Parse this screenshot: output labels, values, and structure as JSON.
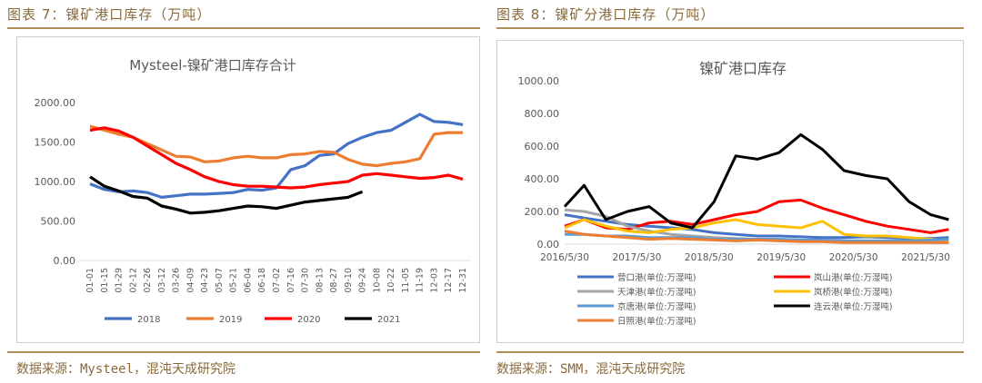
{
  "left": {
    "figure_title": "图表 7：镍矿港口库存（万吨）",
    "source": "数据来源：Mysteel，混沌天成研究院"
  },
  "right": {
    "figure_title": "图表 8：镍矿分港口库存（万吨）",
    "source": "数据来源：SMM，混沌天成研究院"
  },
  "chart_data": [
    {
      "type": "line",
      "title": "Mysteel-镍矿港口库存合计",
      "ylim": [
        0,
        2000
      ],
      "yticks": [
        "0.00",
        "500.00",
        "1000.00",
        "1500.00",
        "2000.00"
      ],
      "categories": [
        "01-01",
        "01-15",
        "01-29",
        "02-12",
        "02-26",
        "03-12",
        "03-26",
        "04-09",
        "04-23",
        "05-07",
        "05-21",
        "06-04",
        "06-18",
        "07-02",
        "07-16",
        "07-30",
        "08-13",
        "08-27",
        "09-10",
        "09-24",
        "10-08",
        "10-22",
        "11-05",
        "11-19",
        "12-03",
        "12-17",
        "12-31"
      ],
      "series": [
        {
          "name": "2018",
          "color": "#4472c4",
          "values": [
            970,
            900,
            870,
            880,
            860,
            800,
            820,
            840,
            840,
            850,
            860,
            900,
            890,
            920,
            1150,
            1200,
            1330,
            1350,
            1480,
            1560,
            1620,
            1650,
            1750,
            1850,
            1760,
            1750,
            1720
          ]
        },
        {
          "name": "2019",
          "color": "#ed7d31",
          "values": [
            1700,
            1650,
            1600,
            1560,
            1480,
            1400,
            1320,
            1310,
            1250,
            1260,
            1300,
            1320,
            1300,
            1300,
            1340,
            1350,
            1380,
            1370,
            1280,
            1220,
            1200,
            1230,
            1250,
            1290,
            1600,
            1620,
            1620
          ]
        },
        {
          "name": "2020",
          "color": "#ff0000",
          "values": [
            1650,
            1680,
            1640,
            1560,
            1450,
            1340,
            1230,
            1150,
            1060,
            1000,
            960,
            940,
            940,
            930,
            920,
            930,
            960,
            980,
            1000,
            1080,
            1100,
            1080,
            1060,
            1040,
            1050,
            1080,
            1030
          ]
        },
        {
          "name": "2021",
          "color": "#000000",
          "values": [
            1060,
            940,
            880,
            810,
            790,
            690,
            650,
            600,
            610,
            630,
            660,
            690,
            680,
            660,
            700,
            740,
            760,
            780,
            800,
            870,
            null,
            null,
            null,
            null,
            null,
            null,
            null
          ]
        }
      ]
    },
    {
      "type": "line",
      "title": "镍矿港口库存",
      "ylim": [
        0,
        1000
      ],
      "yticks": [
        "0.00",
        "200.00",
        "400.00",
        "600.00",
        "800.00",
        "1000.00"
      ],
      "xticks": [
        "2016/5/30",
        "2017/5/30",
        "2018/5/30",
        "2019/5/30",
        "2020/5/30",
        "2021/5/30"
      ],
      "x": [
        2016.33,
        2016.6,
        2016.9,
        2017.2,
        2017.5,
        2017.8,
        2018.1,
        2018.4,
        2018.7,
        2019.0,
        2019.3,
        2019.6,
        2019.9,
        2020.2,
        2020.5,
        2020.8,
        2021.1,
        2021.4,
        2021.65
      ],
      "series": [
        {
          "name": "营口港(单位:万湿吨)",
          "color": "#4472c4",
          "values": [
            180,
            160,
            140,
            120,
            110,
            100,
            90,
            70,
            60,
            50,
            50,
            45,
            40,
            40,
            45,
            40,
            35,
            35,
            40
          ]
        },
        {
          "name": "岚山港(单位:万湿吨)",
          "color": "#ff0000",
          "values": [
            110,
            150,
            100,
            90,
            130,
            140,
            120,
            150,
            180,
            200,
            260,
            270,
            220,
            180,
            140,
            110,
            90,
            70,
            90
          ]
        },
        {
          "name": "天津港(单位:万湿吨)",
          "color": "#a5a5a5",
          "values": [
            210,
            200,
            170,
            110,
            80,
            60,
            50,
            40,
            35,
            30,
            30,
            25,
            25,
            20,
            20,
            15,
            15,
            10,
            10
          ]
        },
        {
          "name": "岚桥港(单位:万湿吨)",
          "color": "#ffc000",
          "values": [
            100,
            150,
            110,
            80,
            70,
            90,
            100,
            130,
            150,
            120,
            110,
            100,
            140,
            60,
            50,
            50,
            40,
            30,
            20
          ]
        },
        {
          "name": "京唐港(单位:万湿吨)",
          "color": "#5b9bd5",
          "values": [
            60,
            60,
            50,
            50,
            40,
            40,
            40,
            30,
            30,
            30,
            30,
            25,
            25,
            20,
            20,
            20,
            20,
            25,
            30
          ]
        },
        {
          "name": "连云港(单位:万湿吨)",
          "color": "#000000",
          "values": [
            230,
            360,
            150,
            200,
            230,
            130,
            100,
            260,
            540,
            520,
            560,
            670,
            580,
            450,
            420,
            400,
            260,
            180,
            150
          ]
        },
        {
          "name": "日照港(单位:万湿吨)",
          "color": "#ed7d31",
          "values": [
            80,
            60,
            50,
            40,
            30,
            35,
            30,
            25,
            20,
            25,
            20,
            15,
            15,
            10,
            10,
            10,
            10,
            10,
            10
          ]
        }
      ]
    }
  ]
}
